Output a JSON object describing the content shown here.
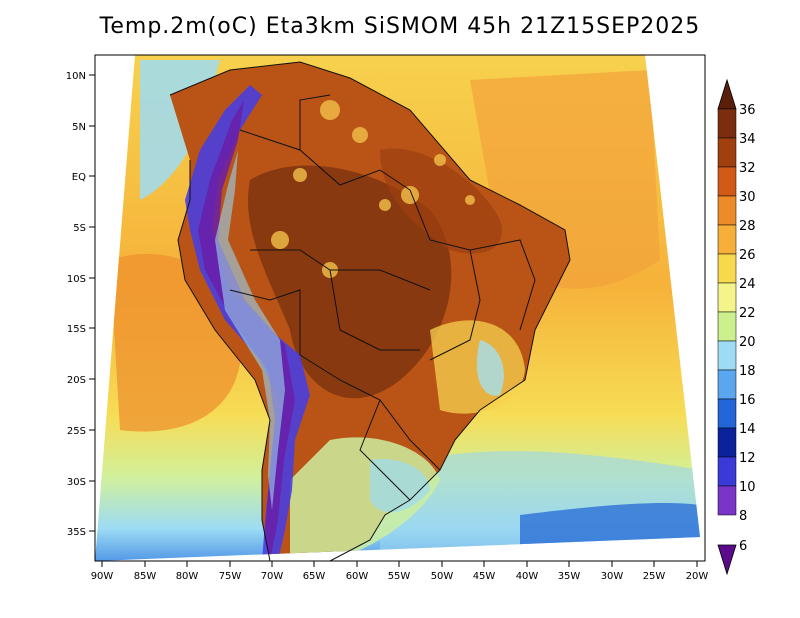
{
  "title": "Temp.2m(oC) Eta3km SiSMOM 45h 21Z15SEP2025",
  "latitude_labels": [
    "10N",
    "5N",
    "EQ",
    "5S",
    "10S",
    "15S",
    "20S",
    "25S",
    "30S",
    "35S"
  ],
  "longitude_labels": [
    "90W",
    "85W",
    "80W",
    "75W",
    "70W",
    "65W",
    "60W",
    "55W",
    "50W",
    "45W",
    "40W",
    "35W",
    "30W",
    "25W",
    "20W"
  ],
  "colorbar": {
    "labels": [
      "36",
      "34",
      "32",
      "30",
      "28",
      "26",
      "24",
      "22",
      "20",
      "18",
      "16",
      "14",
      "12",
      "10",
      "8",
      "6"
    ],
    "colors": [
      "#5a1f0a",
      "#7a2e0e",
      "#a0400f",
      "#d15a17",
      "#ec8b29",
      "#f6b03a",
      "#f7d94e",
      "#f4f48a",
      "#cdf08f",
      "#9ddcf4",
      "#5aa7ef",
      "#2466d8",
      "#0a239a",
      "#3a3ad8",
      "#7a34c8",
      "#5b0a8c"
    ]
  }
}
